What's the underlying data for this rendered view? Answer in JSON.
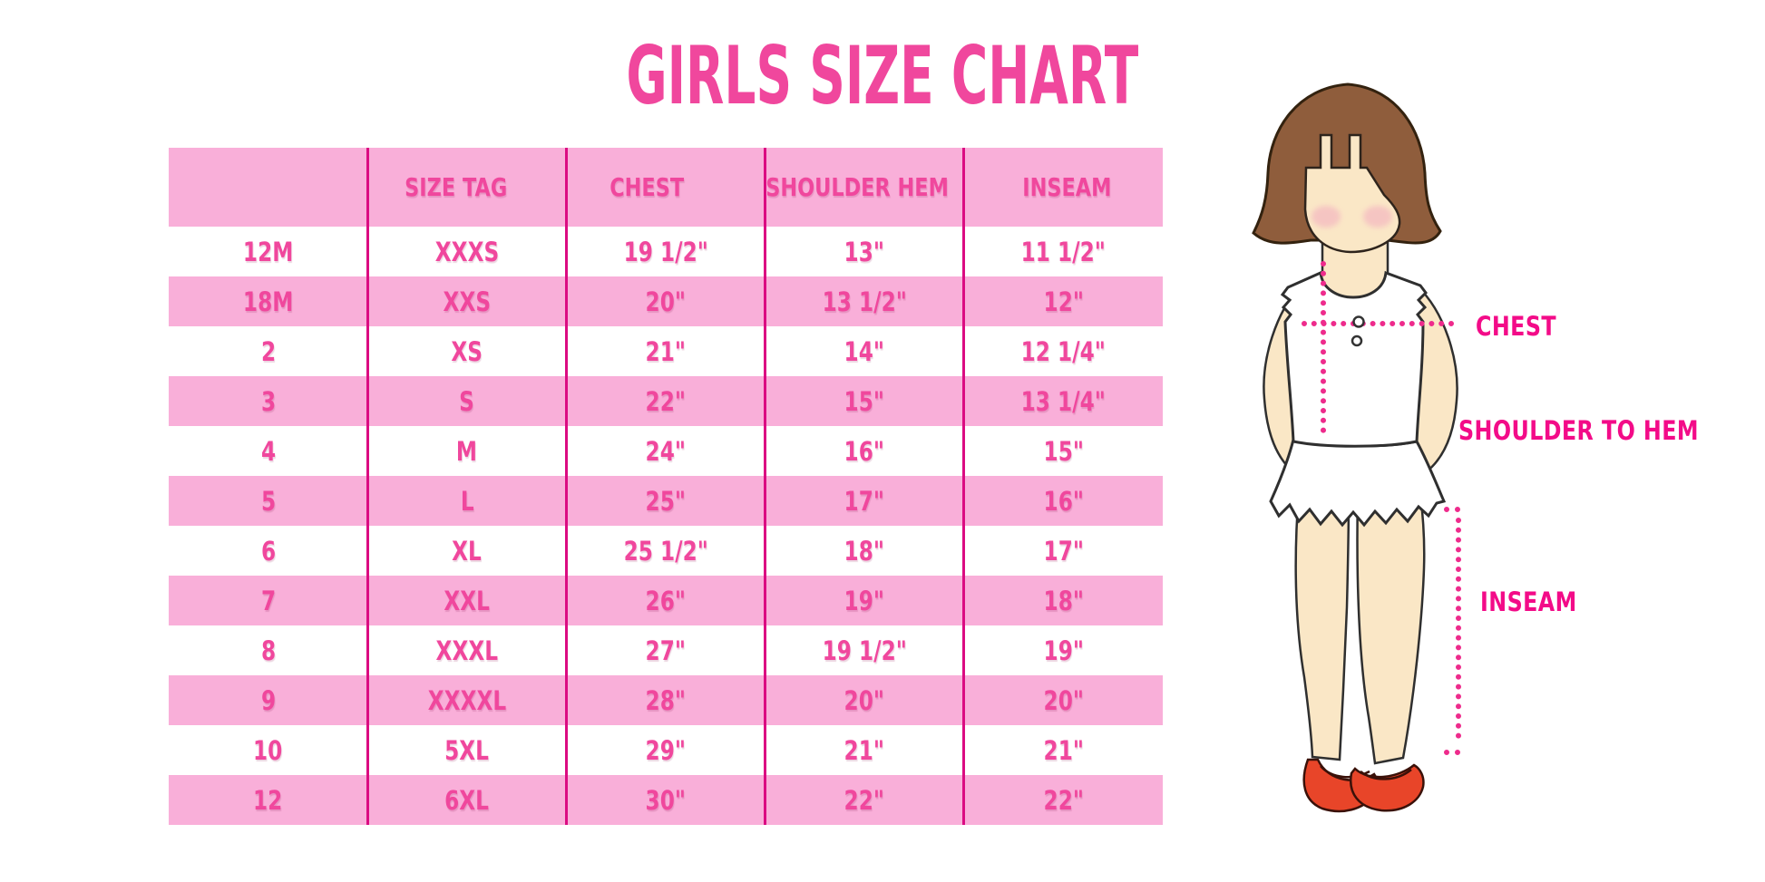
{
  "title": "GIRLS SIZE CHART",
  "chart_data": {
    "type": "table",
    "title": "GIRLS SIZE CHART",
    "columns": [
      "",
      "SIZE TAG",
      "CHEST",
      "SHOULDER HEM",
      "INSEAM"
    ],
    "rows": [
      [
        "12M",
        "XXXS",
        "19 1/2\"",
        "13\"",
        "11 1/2\""
      ],
      [
        "18M",
        "XXS",
        "20\"",
        "13 1/2\"",
        "12\""
      ],
      [
        "2",
        "XS",
        "21\"",
        "14\"",
        "12 1/4\""
      ],
      [
        "3",
        "S",
        "22\"",
        "15\"",
        "13 1/4\""
      ],
      [
        "4",
        "M",
        "24\"",
        "16\"",
        "15\""
      ],
      [
        "5",
        "L",
        "25\"",
        "17\"",
        "16\""
      ],
      [
        "6",
        "XL",
        "25 1/2\"",
        "18\"",
        "17\""
      ],
      [
        "7",
        "XXL",
        "26\"",
        "19\"",
        "18\""
      ],
      [
        "8",
        "XXXL",
        "27\"",
        "19 1/2\"",
        "19\""
      ],
      [
        "9",
        "XXXXL",
        "28\"",
        "20\"",
        "20\""
      ],
      [
        "10",
        "5XL",
        "29\"",
        "21\"",
        "21\""
      ],
      [
        "12",
        "6XL",
        "30\"",
        "22\"",
        "22\""
      ]
    ],
    "annotations": [
      "CHEST",
      "SHOULDER TO HEM",
      "INSEAM"
    ],
    "legend_position": "none",
    "grid": "off"
  },
  "figure": {
    "labels": {
      "chest": "CHEST",
      "shoulder_to_hem": "SHOULDER TO HEM",
      "inseam": "INSEAM"
    }
  },
  "colors": {
    "accent": "#F0479D",
    "row-pink": "#F9AFD9",
    "divider": "#DB0C82",
    "label-magenta": "#F30B88",
    "dot": "#EE2B8C",
    "hair-brown": "#8F5D3C",
    "skin": "#FAE7C6",
    "shoe-red": "#E84529"
  }
}
